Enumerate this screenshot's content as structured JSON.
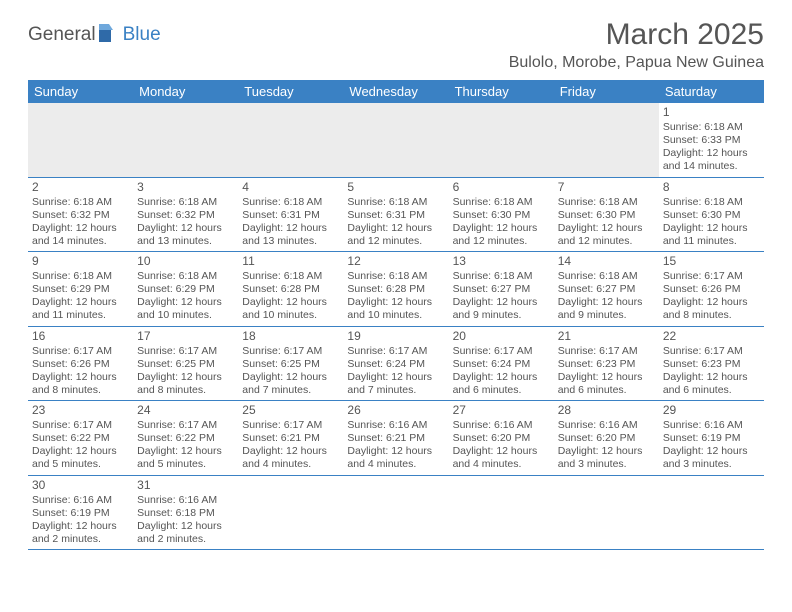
{
  "logo": {
    "general": "General",
    "blue": "Blue"
  },
  "title": "March 2025",
  "subtitle": "Bulolo, Morobe, Papua New Guinea",
  "colors": {
    "header_bg": "#3a81c4",
    "header_fg": "#ffffff",
    "border": "#3a81c4",
    "blank_bg": "#ececec",
    "text": "#555555"
  },
  "weekdays": [
    "Sunday",
    "Monday",
    "Tuesday",
    "Wednesday",
    "Thursday",
    "Friday",
    "Saturday"
  ],
  "weeks": [
    [
      {
        "blank": true
      },
      {
        "blank": true
      },
      {
        "blank": true
      },
      {
        "blank": true
      },
      {
        "blank": true
      },
      {
        "blank": true
      },
      {
        "day": "1",
        "sunrise": "Sunrise: 6:18 AM",
        "sunset": "Sunset: 6:33 PM",
        "daylight": "Daylight: 12 hours and 14 minutes."
      }
    ],
    [
      {
        "day": "2",
        "sunrise": "Sunrise: 6:18 AM",
        "sunset": "Sunset: 6:32 PM",
        "daylight": "Daylight: 12 hours and 14 minutes."
      },
      {
        "day": "3",
        "sunrise": "Sunrise: 6:18 AM",
        "sunset": "Sunset: 6:32 PM",
        "daylight": "Daylight: 12 hours and 13 minutes."
      },
      {
        "day": "4",
        "sunrise": "Sunrise: 6:18 AM",
        "sunset": "Sunset: 6:31 PM",
        "daylight": "Daylight: 12 hours and 13 minutes."
      },
      {
        "day": "5",
        "sunrise": "Sunrise: 6:18 AM",
        "sunset": "Sunset: 6:31 PM",
        "daylight": "Daylight: 12 hours and 12 minutes."
      },
      {
        "day": "6",
        "sunrise": "Sunrise: 6:18 AM",
        "sunset": "Sunset: 6:30 PM",
        "daylight": "Daylight: 12 hours and 12 minutes."
      },
      {
        "day": "7",
        "sunrise": "Sunrise: 6:18 AM",
        "sunset": "Sunset: 6:30 PM",
        "daylight": "Daylight: 12 hours and 12 minutes."
      },
      {
        "day": "8",
        "sunrise": "Sunrise: 6:18 AM",
        "sunset": "Sunset: 6:30 PM",
        "daylight": "Daylight: 12 hours and 11 minutes."
      }
    ],
    [
      {
        "day": "9",
        "sunrise": "Sunrise: 6:18 AM",
        "sunset": "Sunset: 6:29 PM",
        "daylight": "Daylight: 12 hours and 11 minutes."
      },
      {
        "day": "10",
        "sunrise": "Sunrise: 6:18 AM",
        "sunset": "Sunset: 6:29 PM",
        "daylight": "Daylight: 12 hours and 10 minutes."
      },
      {
        "day": "11",
        "sunrise": "Sunrise: 6:18 AM",
        "sunset": "Sunset: 6:28 PM",
        "daylight": "Daylight: 12 hours and 10 minutes."
      },
      {
        "day": "12",
        "sunrise": "Sunrise: 6:18 AM",
        "sunset": "Sunset: 6:28 PM",
        "daylight": "Daylight: 12 hours and 10 minutes."
      },
      {
        "day": "13",
        "sunrise": "Sunrise: 6:18 AM",
        "sunset": "Sunset: 6:27 PM",
        "daylight": "Daylight: 12 hours and 9 minutes."
      },
      {
        "day": "14",
        "sunrise": "Sunrise: 6:18 AM",
        "sunset": "Sunset: 6:27 PM",
        "daylight": "Daylight: 12 hours and 9 minutes."
      },
      {
        "day": "15",
        "sunrise": "Sunrise: 6:17 AM",
        "sunset": "Sunset: 6:26 PM",
        "daylight": "Daylight: 12 hours and 8 minutes."
      }
    ],
    [
      {
        "day": "16",
        "sunrise": "Sunrise: 6:17 AM",
        "sunset": "Sunset: 6:26 PM",
        "daylight": "Daylight: 12 hours and 8 minutes."
      },
      {
        "day": "17",
        "sunrise": "Sunrise: 6:17 AM",
        "sunset": "Sunset: 6:25 PM",
        "daylight": "Daylight: 12 hours and 8 minutes."
      },
      {
        "day": "18",
        "sunrise": "Sunrise: 6:17 AM",
        "sunset": "Sunset: 6:25 PM",
        "daylight": "Daylight: 12 hours and 7 minutes."
      },
      {
        "day": "19",
        "sunrise": "Sunrise: 6:17 AM",
        "sunset": "Sunset: 6:24 PM",
        "daylight": "Daylight: 12 hours and 7 minutes."
      },
      {
        "day": "20",
        "sunrise": "Sunrise: 6:17 AM",
        "sunset": "Sunset: 6:24 PM",
        "daylight": "Daylight: 12 hours and 6 minutes."
      },
      {
        "day": "21",
        "sunrise": "Sunrise: 6:17 AM",
        "sunset": "Sunset: 6:23 PM",
        "daylight": "Daylight: 12 hours and 6 minutes."
      },
      {
        "day": "22",
        "sunrise": "Sunrise: 6:17 AM",
        "sunset": "Sunset: 6:23 PM",
        "daylight": "Daylight: 12 hours and 6 minutes."
      }
    ],
    [
      {
        "day": "23",
        "sunrise": "Sunrise: 6:17 AM",
        "sunset": "Sunset: 6:22 PM",
        "daylight": "Daylight: 12 hours and 5 minutes."
      },
      {
        "day": "24",
        "sunrise": "Sunrise: 6:17 AM",
        "sunset": "Sunset: 6:22 PM",
        "daylight": "Daylight: 12 hours and 5 minutes."
      },
      {
        "day": "25",
        "sunrise": "Sunrise: 6:17 AM",
        "sunset": "Sunset: 6:21 PM",
        "daylight": "Daylight: 12 hours and 4 minutes."
      },
      {
        "day": "26",
        "sunrise": "Sunrise: 6:16 AM",
        "sunset": "Sunset: 6:21 PM",
        "daylight": "Daylight: 12 hours and 4 minutes."
      },
      {
        "day": "27",
        "sunrise": "Sunrise: 6:16 AM",
        "sunset": "Sunset: 6:20 PM",
        "daylight": "Daylight: 12 hours and 4 minutes."
      },
      {
        "day": "28",
        "sunrise": "Sunrise: 6:16 AM",
        "sunset": "Sunset: 6:20 PM",
        "daylight": "Daylight: 12 hours and 3 minutes."
      },
      {
        "day": "29",
        "sunrise": "Sunrise: 6:16 AM",
        "sunset": "Sunset: 6:19 PM",
        "daylight": "Daylight: 12 hours and 3 minutes."
      }
    ],
    [
      {
        "day": "30",
        "sunrise": "Sunrise: 6:16 AM",
        "sunset": "Sunset: 6:19 PM",
        "daylight": "Daylight: 12 hours and 2 minutes."
      },
      {
        "day": "31",
        "sunrise": "Sunrise: 6:16 AM",
        "sunset": "Sunset: 6:18 PM",
        "daylight": "Daylight: 12 hours and 2 minutes."
      },
      {
        "tail": true
      },
      {
        "tail": true
      },
      {
        "tail": true
      },
      {
        "tail": true
      },
      {
        "tail": true
      }
    ]
  ]
}
